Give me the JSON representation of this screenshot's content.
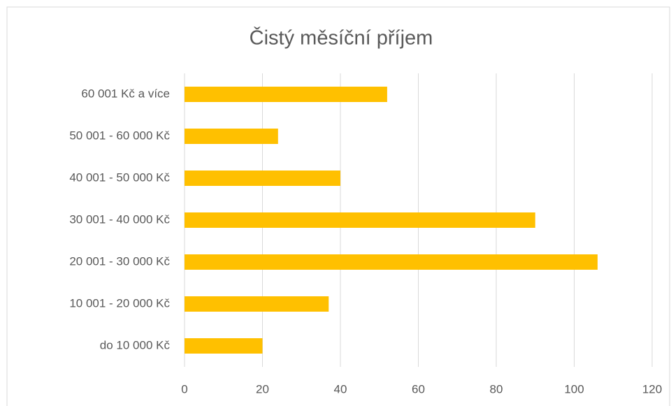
{
  "chart_data": {
    "type": "bar",
    "orientation": "horizontal",
    "title": "Čistý měsíční příjem",
    "categories": [
      "do 10 000 Kč",
      "10 001 - 20 000 Kč",
      "20 001 - 30 000 Kč",
      "30 001 - 40 000 Kč",
      "40 001 - 50 000 Kč",
      "50 001 - 60 000 Kč",
      "60 001 Kč a více"
    ],
    "values": [
      20,
      37,
      106,
      90,
      40,
      24,
      52
    ],
    "color": "#ffc000",
    "xlim": [
      0,
      120
    ],
    "xticks": [
      0,
      20,
      40,
      60,
      80,
      100,
      120
    ],
    "grid": true
  }
}
